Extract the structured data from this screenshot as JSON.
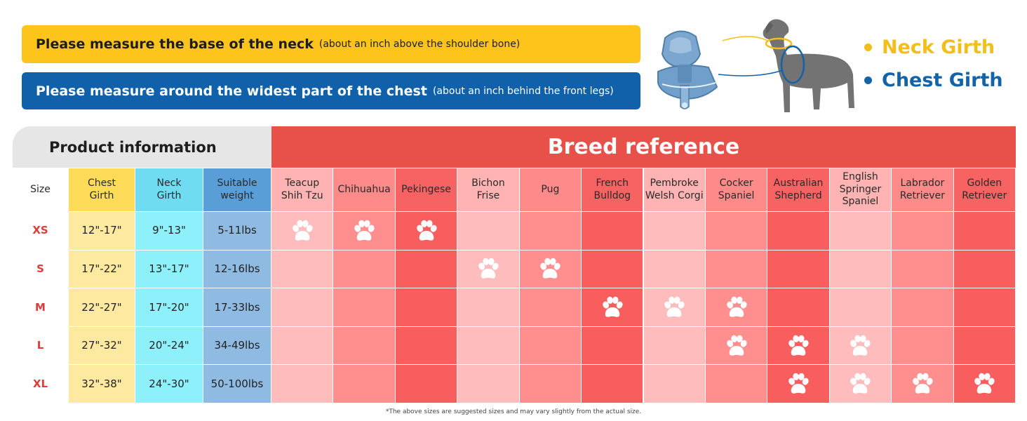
{
  "banners": {
    "neck_main": "Please measure the base of the neck",
    "neck_sub": "(about an inch above the shoulder bone)",
    "chest_main": "Please measure around  the widest part of the chest",
    "chest_sub": "(about an inch behind the front legs)"
  },
  "legend": {
    "neck": "Neck Girth",
    "chest": "Chest Girth",
    "neck_color": "#f3be1a",
    "chest_color": "#1263a8"
  },
  "table": {
    "product_header": "Product information",
    "breed_header": "Breed reference",
    "product_columns": [
      "Size",
      "Chest\nGirth",
      "Neck\nGirth",
      "Suitable\nweight"
    ],
    "breeds": [
      "Teacup\nShih Tzu",
      "Chihuahua",
      "Pekingese",
      "Bichon\nFrise",
      "Pug",
      "French\nBulldog",
      "Pembroke\nWelsh Corgi",
      "Cocker\nSpaniel",
      "Australian\nShepherd",
      "English\nSpringer\nSpaniel",
      "Labrador\nRetriever",
      "Golden\nRetriever"
    ],
    "rows": [
      {
        "size": "XS",
        "chest": "12\"-17\"",
        "neck": "9\"-13\"",
        "weight": "5-11lbs",
        "fits": [
          1,
          1,
          1,
          0,
          0,
          0,
          0,
          0,
          0,
          0,
          0,
          0
        ]
      },
      {
        "size": "S",
        "chest": "17\"-22\"",
        "neck": "13\"-17\"",
        "weight": "12-16lbs",
        "fits": [
          0,
          0,
          0,
          1,
          1,
          0,
          0,
          0,
          0,
          0,
          0,
          0
        ]
      },
      {
        "size": "M",
        "chest": "22\"-27\"",
        "neck": "17\"-20\"",
        "weight": "17-33lbs",
        "fits": [
          0,
          0,
          0,
          0,
          0,
          1,
          1,
          1,
          0,
          0,
          0,
          0
        ]
      },
      {
        "size": "L",
        "chest": "27\"-32\"",
        "neck": "20\"-24\"",
        "weight": "34-49lbs",
        "fits": [
          0,
          0,
          0,
          0,
          0,
          0,
          0,
          1,
          1,
          1,
          0,
          0
        ]
      },
      {
        "size": "XL",
        "chest": "32\"-38\"",
        "neck": "24\"-30\"",
        "weight": "50-100lbs",
        "fits": [
          0,
          0,
          0,
          0,
          0,
          0,
          0,
          0,
          1,
          1,
          1,
          1
        ]
      }
    ],
    "colors": {
      "size_col": "#ffffff",
      "chest_col_head": "#fedc5a",
      "chest_col": "#fee9a0",
      "neck_col_head": "#6fdcf2",
      "neck_col": "#8ef0fb",
      "weight_col_head": "#5a9ed8",
      "weight_col": "#8fbbe3",
      "breed_light": "#ffbcbc",
      "breed_mid": "#ff8f8f",
      "breed_dark": "#f85e5e"
    }
  },
  "footnote": "*The above sizes are suggested sizes and may vary slightly from the actual size."
}
